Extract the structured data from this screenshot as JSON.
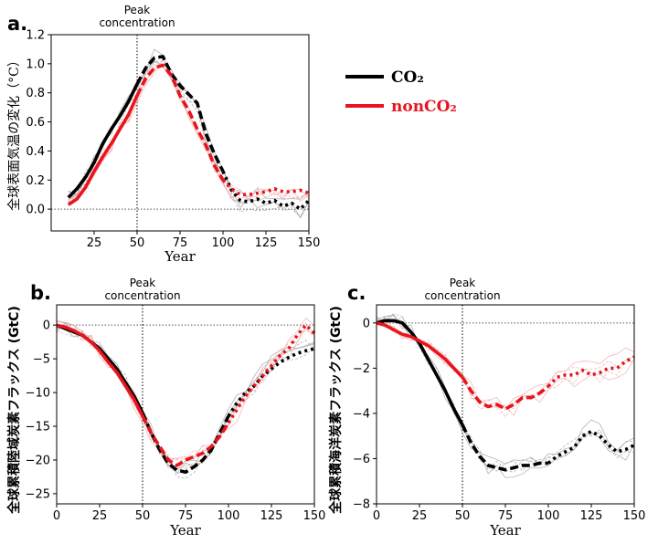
{
  "figure": {
    "legend": {
      "co2_label": "CO₂",
      "nonco2_label": "nonCO₂",
      "co2_color": "#000000",
      "nonco2_color": "#e8141e"
    },
    "peak_line1": "Peak",
    "peak_line2": "concentration"
  },
  "chart_data": [
    {
      "id": "a",
      "panel_label": "a.",
      "type": "line",
      "title": "",
      "xlabel": "Year",
      "ylabel": "全球表面気温の変化（°C）",
      "xlim": [
        0,
        150
      ],
      "ylim": [
        -0.15,
        1.2
      ],
      "xticks": [
        25,
        50,
        75,
        100,
        125,
        150
      ],
      "yticks": [
        0.0,
        0.2,
        0.4,
        0.6,
        0.8,
        1.0,
        1.2
      ],
      "ytick_labels": [
        "0.0",
        "0.2",
        "0.4",
        "0.6",
        "0.8",
        "1.0",
        "1.2"
      ],
      "peak_x": 50,
      "zero_line": 0,
      "series": [
        {
          "name": "CO₂",
          "color": "#000000",
          "x": [
            10,
            15,
            20,
            25,
            30,
            35,
            40,
            45,
            50,
            55,
            60,
            65,
            70,
            75,
            80,
            85,
            90,
            95,
            100,
            105,
            110,
            115,
            120,
            125,
            130,
            135,
            140,
            145,
            150
          ],
          "y": [
            0.08,
            0.14,
            0.22,
            0.32,
            0.45,
            0.55,
            0.64,
            0.74,
            0.86,
            0.97,
            1.04,
            1.05,
            0.93,
            0.85,
            0.79,
            0.73,
            0.52,
            0.38,
            0.26,
            0.13,
            0.06,
            0.05,
            0.07,
            0.04,
            0.06,
            0.02,
            0.04,
            0.0,
            0.06
          ]
        },
        {
          "name": "nonCO₂",
          "color": "#e8141e",
          "x": [
            10,
            15,
            20,
            25,
            30,
            35,
            40,
            45,
            50,
            55,
            60,
            65,
            70,
            75,
            80,
            85,
            90,
            95,
            100,
            105,
            110,
            115,
            120,
            125,
            130,
            135,
            140,
            145,
            150
          ],
          "y": [
            0.03,
            0.07,
            0.15,
            0.26,
            0.36,
            0.45,
            0.55,
            0.65,
            0.78,
            0.9,
            0.97,
            0.99,
            0.92,
            0.78,
            0.68,
            0.55,
            0.44,
            0.3,
            0.2,
            0.14,
            0.1,
            0.1,
            0.11,
            0.12,
            0.14,
            0.12,
            0.12,
            0.13,
            0.11
          ]
        }
      ]
    },
    {
      "id": "b",
      "panel_label": "b.",
      "type": "line",
      "title": "",
      "xlabel": "Year",
      "ylabel": "全球累積陸域炭素フラックス (GtC)",
      "xlim": [
        0,
        150
      ],
      "ylim": [
        -26.5,
        3
      ],
      "xticks": [
        0,
        25,
        50,
        75,
        100,
        125,
        150
      ],
      "yticks": [
        0,
        -5,
        -10,
        -15,
        -20,
        -25
      ],
      "ytick_labels": [
        "0",
        "−5",
        "−10",
        "−15",
        "−20",
        "−25"
      ],
      "peak_x": 50,
      "zero_line": 0,
      "series": [
        {
          "name": "CO₂",
          "color": "#000000",
          "x": [
            0,
            5,
            10,
            15,
            20,
            25,
            30,
            35,
            40,
            45,
            50,
            55,
            60,
            65,
            70,
            75,
            80,
            85,
            90,
            95,
            100,
            105,
            110,
            115,
            120,
            125,
            130,
            135,
            140,
            145,
            150
          ],
          "y": [
            0,
            -0.5,
            -1.0,
            -1.5,
            -2.5,
            -3.5,
            -5.0,
            -6.5,
            -8.5,
            -10.5,
            -13.0,
            -16.0,
            -18.5,
            -20.5,
            -21.5,
            -21.8,
            -21.0,
            -20.0,
            -18.5,
            -16.0,
            -13.5,
            -11.5,
            -10.0,
            -9.0,
            -7.5,
            -6.5,
            -5.5,
            -4.8,
            -4.2,
            -3.8,
            -3.5
          ]
        },
        {
          "name": "nonCO₂",
          "color": "#e8141e",
          "x": [
            0,
            5,
            10,
            15,
            20,
            25,
            30,
            35,
            40,
            45,
            50,
            55,
            60,
            65,
            70,
            75,
            80,
            85,
            90,
            95,
            100,
            105,
            110,
            115,
            120,
            125,
            130,
            135,
            140,
            145,
            150
          ],
          "y": [
            0,
            -0.3,
            -0.8,
            -1.5,
            -2.5,
            -3.8,
            -5.5,
            -7.0,
            -9.0,
            -11.0,
            -13.5,
            -16.0,
            -18.0,
            -20.0,
            -20.8,
            -20.0,
            -19.5,
            -19.0,
            -18.0,
            -16.5,
            -14.5,
            -12.5,
            -10.5,
            -9.0,
            -7.5,
            -6.0,
            -4.5,
            -3.5,
            -1.5,
            0.0,
            -1.2
          ]
        }
      ]
    },
    {
      "id": "c",
      "panel_label": "c.",
      "type": "line",
      "title": "",
      "xlabel": "Year",
      "ylabel": "全球累積海洋炭素フラックス (GtC)",
      "xlim": [
        0,
        150
      ],
      "ylim": [
        -8,
        0.8
      ],
      "xticks": [
        0,
        25,
        50,
        75,
        100,
        125,
        150
      ],
      "yticks": [
        0,
        -2,
        -4,
        -6,
        -8
      ],
      "ytick_labels": [
        "0",
        "−2",
        "−4",
        "−6",
        "−8"
      ],
      "peak_x": 50,
      "zero_line": 0,
      "series": [
        {
          "name": "CO₂",
          "color": "#000000",
          "x": [
            0,
            5,
            10,
            15,
            20,
            25,
            30,
            35,
            40,
            45,
            50,
            55,
            60,
            65,
            70,
            75,
            80,
            85,
            90,
            95,
            100,
            105,
            110,
            115,
            120,
            125,
            130,
            135,
            140,
            145,
            150
          ],
          "y": [
            0,
            0.1,
            0.1,
            0,
            -0.4,
            -0.9,
            -1.6,
            -2.3,
            -3.0,
            -3.8,
            -4.5,
            -5.3,
            -5.9,
            -6.3,
            -6.4,
            -6.5,
            -6.4,
            -6.3,
            -6.3,
            -6.2,
            -6.2,
            -5.9,
            -5.7,
            -5.5,
            -5.0,
            -4.8,
            -5.0,
            -5.4,
            -5.7,
            -5.6,
            -5.4
          ]
        },
        {
          "name": "nonCO₂",
          "color": "#e8141e",
          "x": [
            0,
            5,
            10,
            15,
            20,
            25,
            30,
            35,
            40,
            45,
            50,
            55,
            60,
            65,
            70,
            75,
            80,
            85,
            90,
            95,
            100,
            105,
            110,
            115,
            120,
            125,
            130,
            135,
            140,
            145,
            150
          ],
          "y": [
            0,
            -0.1,
            -0.3,
            -0.5,
            -0.6,
            -0.8,
            -1.0,
            -1.3,
            -1.6,
            -2.0,
            -2.4,
            -3.0,
            -3.5,
            -3.7,
            -3.6,
            -3.8,
            -3.6,
            -3.3,
            -3.3,
            -3.1,
            -2.8,
            -2.4,
            -2.3,
            -2.3,
            -2.1,
            -2.3,
            -2.2,
            -2.0,
            -2.0,
            -1.7,
            -1.5
          ]
        }
      ]
    }
  ]
}
